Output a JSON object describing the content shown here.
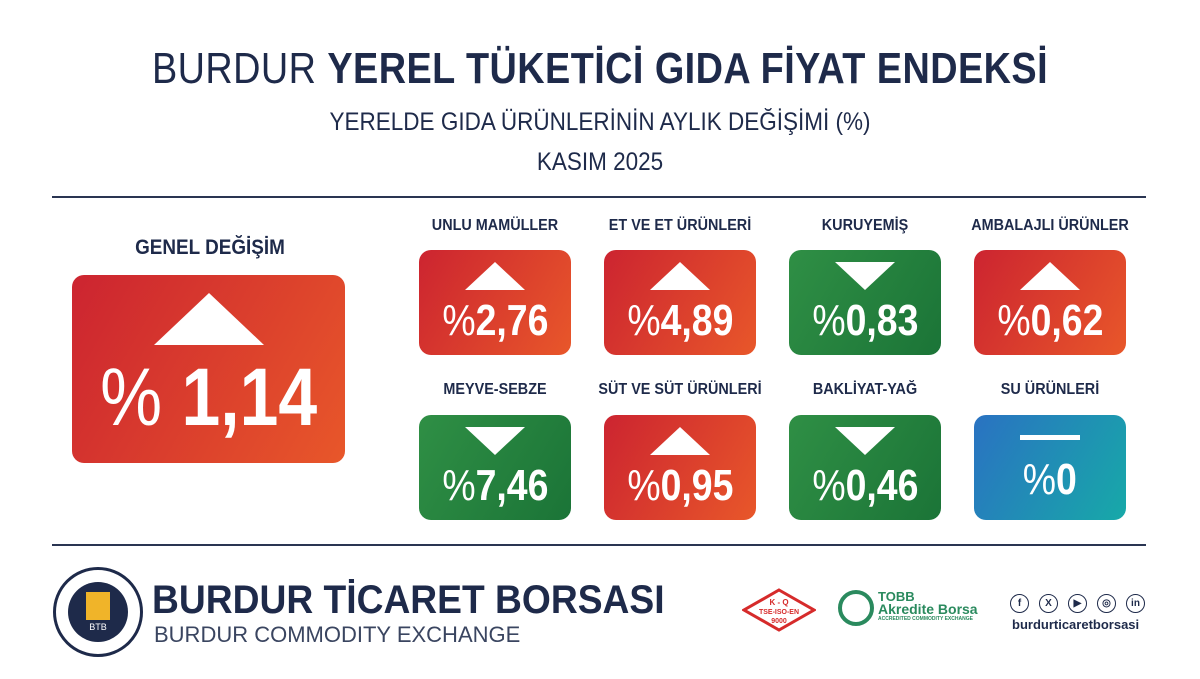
{
  "header": {
    "title_light": "BURDUR",
    "title_bold": "YEREL TÜKETİCİ GIDA FİYAT ENDEKSİ",
    "subtitle": "YERELDE GIDA ÜRÜNLERİNİN AYLIK DEĞİŞİMİ (%)",
    "period": "KASIM 2025"
  },
  "general": {
    "label": "GENEL DEĞİŞİM",
    "percent_sign": "%",
    "value": "1,14",
    "direction": "up",
    "color": "red"
  },
  "categories": [
    {
      "label": "UNLU MAMÜLLER",
      "percent_sign": "%",
      "value": "2,76",
      "direction": "up",
      "color": "red"
    },
    {
      "label": "ET VE ET ÜRÜNLERİ",
      "percent_sign": "%",
      "value": "4,89",
      "direction": "up",
      "color": "red"
    },
    {
      "label": "KURUYEMİŞ",
      "percent_sign": "%",
      "value": "0,83",
      "direction": "down",
      "color": "green"
    },
    {
      "label": "AMBALAJLI ÜRÜNLER",
      "percent_sign": "%",
      "value": "0,62",
      "direction": "up",
      "color": "red"
    },
    {
      "label": "MEYVE-SEBZE",
      "percent_sign": "%",
      "value": "7,46",
      "direction": "down",
      "color": "green"
    },
    {
      "label": "SÜT VE SÜT ÜRÜNLERİ",
      "percent_sign": "%",
      "value": "0,95",
      "direction": "up",
      "color": "red"
    },
    {
      "label": "BAKLİYAT-YAĞ",
      "percent_sign": "%",
      "value": "0,46",
      "direction": "down",
      "color": "green"
    },
    {
      "label": "SU ÜRÜNLERİ",
      "percent_sign": "%",
      "value": "0",
      "direction": "flat",
      "color": "blue"
    }
  ],
  "colors": {
    "red": "#d8352c",
    "green": "#25803d",
    "blue": "#2190b5",
    "navy": "#1e2a4a"
  },
  "footer": {
    "org_name": "BURDUR TİCARET BORSASI",
    "org_name_en": "BURDUR COMMODITY EXCHANGE",
    "seal_text": "BURDUR TİCARET BORSASI",
    "seal_abbr": "BTB",
    "seal_year": "1989",
    "cert": "K-Q TSE-ISO-EN 9000",
    "tobb_line1": "TOBB",
    "tobb_line2": "Akredite Borsa",
    "tobb_line3": "ACCREDITED COMMODITY EXCHANGE",
    "social_icons": [
      "facebook-icon",
      "x-icon",
      "youtube-icon",
      "instagram-icon",
      "linkedin-icon"
    ],
    "social_glyphs": [
      "f",
      "X",
      "▶",
      "◎",
      "in"
    ],
    "handle": "burdurticaretborsasi"
  }
}
